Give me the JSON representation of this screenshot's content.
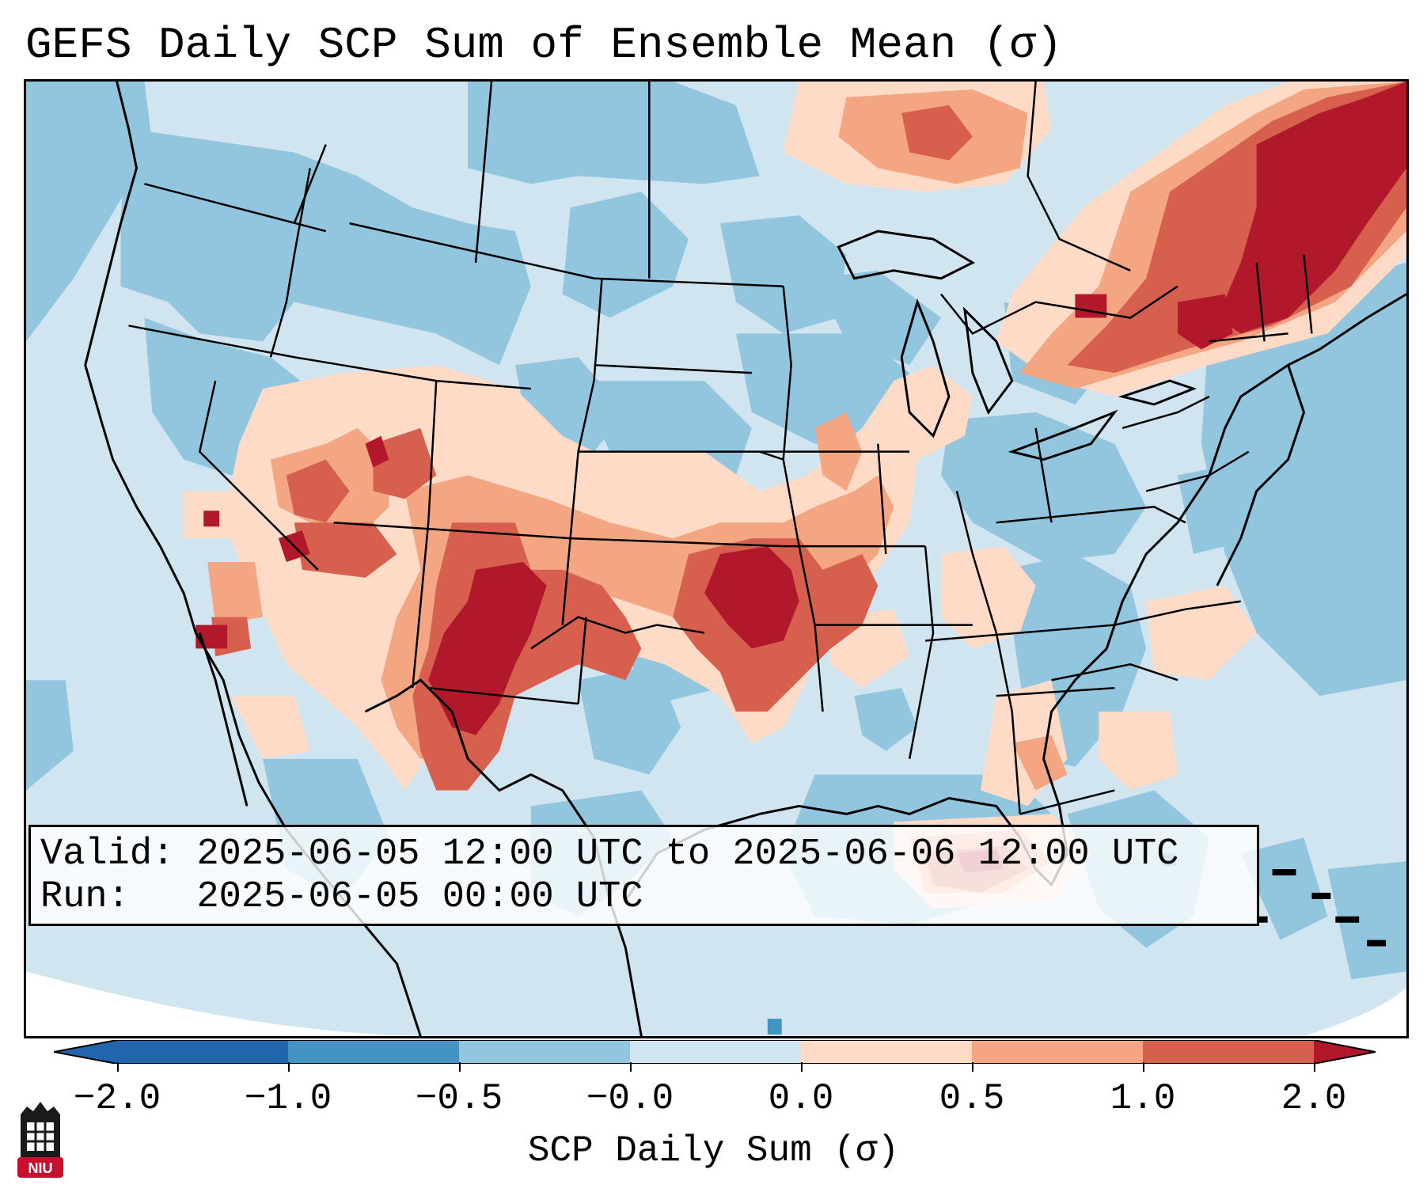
{
  "title": "GEFS Daily SCP Sum of Ensemble Mean (σ)",
  "info": {
    "valid_label": "Valid:",
    "valid_value": "2025-06-05 12:00 UTC to 2025-06-06 12:00 UTC",
    "run_label": "Run:",
    "run_value": "2025-06-05 00:00 UTC"
  },
  "colorbar": {
    "label": "SCP Daily Sum (σ)",
    "ticks": [
      "−2.0",
      "−1.0",
      "−0.5",
      "−0.0",
      "0.0",
      "0.5",
      "1.0",
      "2.0"
    ],
    "colors": [
      "#2166ac",
      "#4393c3",
      "#92c5de",
      "#d1e5f0",
      "#fddbc7",
      "#f4a582",
      "#d6604d",
      "#b2182b"
    ]
  },
  "map_colors": {
    "ocean_light": "#d1e5f0",
    "blue_mid": "#92c5de",
    "blue_dark": "#4393c3",
    "peach": "#fddbc7",
    "salmon": "#f4a582",
    "red": "#d6604d",
    "dark_red": "#b2182b",
    "outside": "#ffffff"
  },
  "logo": {
    "text": "NIU",
    "name": "niu-logo"
  }
}
